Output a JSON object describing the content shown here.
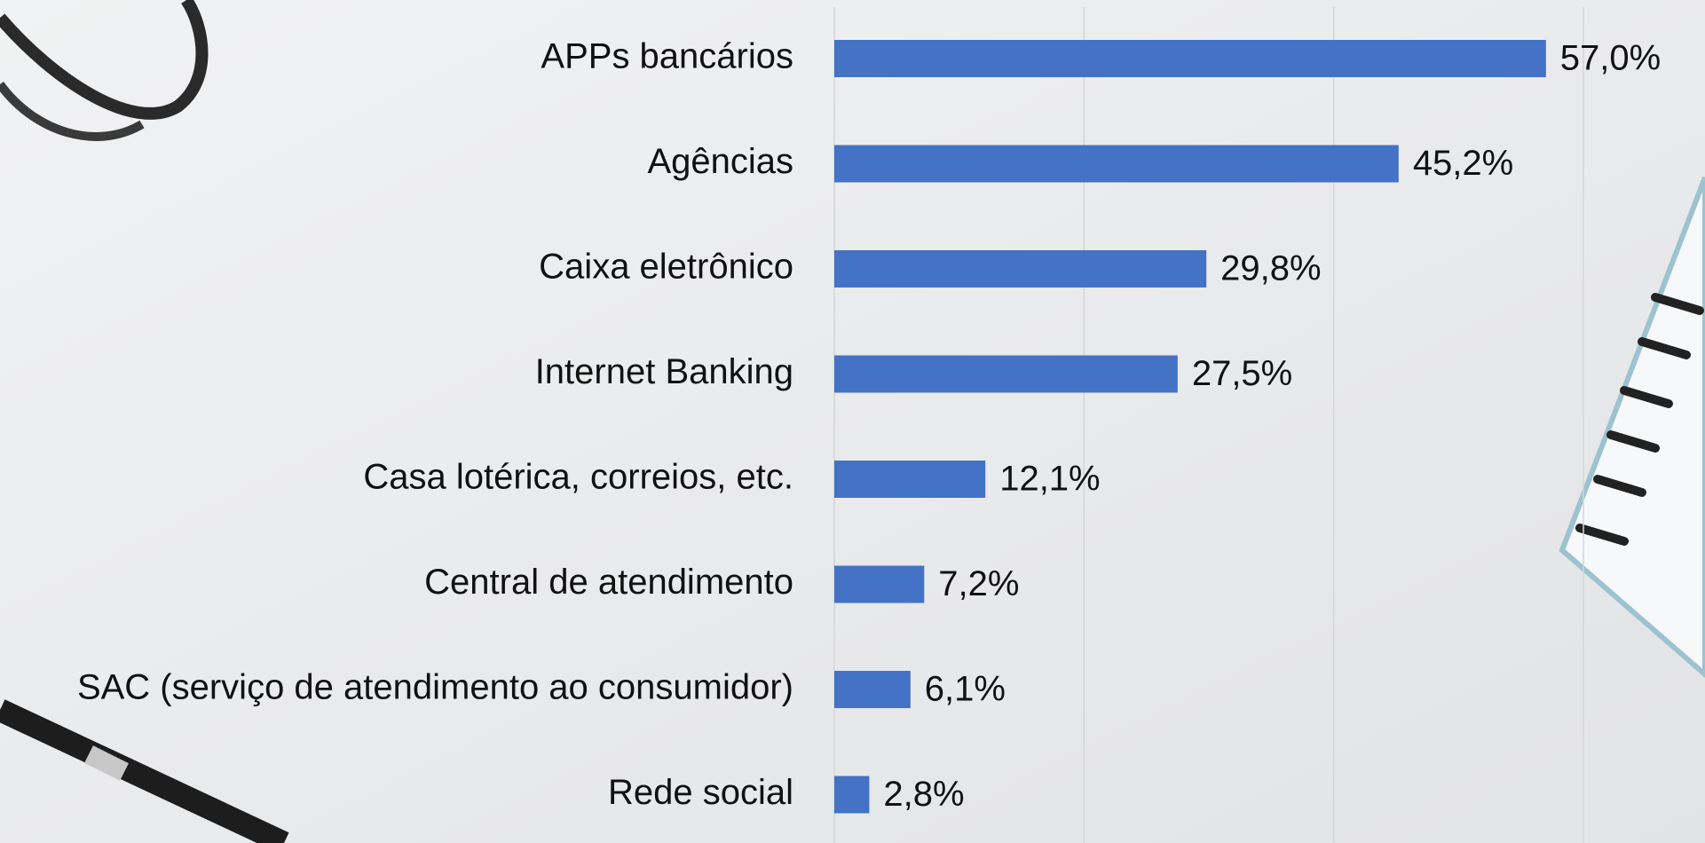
{
  "chart_data": {
    "type": "bar",
    "orientation": "horizontal",
    "categories": [
      "APPs bancários",
      "Agências",
      "Caixa eletrônico",
      "Internet Banking",
      "Casa lotérica, correios, etc.",
      "Central de atendimento",
      "SAC (serviço de atendimento ao consumidor)",
      "Rede social"
    ],
    "values": [
      57.0,
      45.2,
      29.8,
      27.5,
      12.1,
      7.2,
      6.1,
      2.8
    ],
    "value_labels": [
      "57,0%",
      "45,2%",
      "29,8%",
      "27,5%",
      "12,1%",
      "7,2%",
      "6,1%",
      "2,8%"
    ],
    "color": "#4472c4",
    "xlim": [
      0,
      60
    ],
    "xticks": [
      0,
      20,
      40,
      60
    ],
    "grid": true
  }
}
